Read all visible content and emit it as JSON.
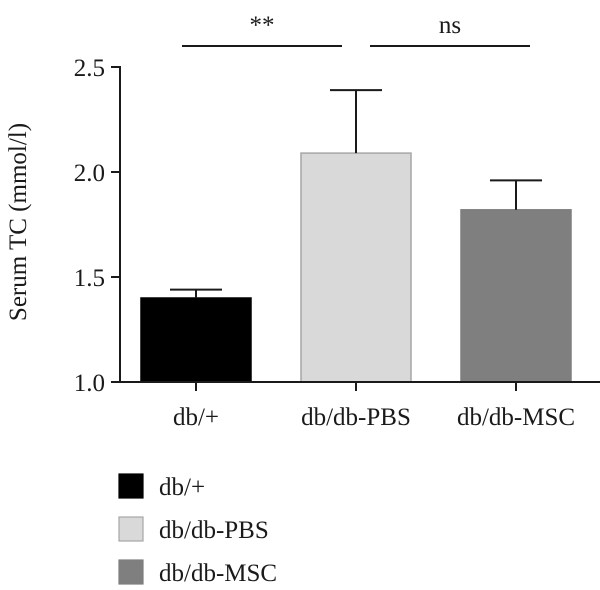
{
  "chart_data": {
    "type": "bar",
    "title": "",
    "xlabel": "",
    "ylabel": "Serum TC (mmol/l)",
    "ylim": [
      1.0,
      2.5
    ],
    "yticks": [
      "1.0",
      "1.5",
      "2.0",
      "2.5"
    ],
    "categories": [
      "db/+",
      "db/db-PBS",
      "db/db-MSC"
    ],
    "values": [
      1.4,
      2.09,
      1.82
    ],
    "error_upper": [
      1.44,
      2.39,
      1.96
    ],
    "colors": [
      "#000000",
      "#d9d9d9",
      "#7f7f7f"
    ],
    "significance": [
      {
        "from": 0,
        "to": 1,
        "label": "**"
      },
      {
        "from": 1,
        "to": 2,
        "label": "ns"
      }
    ],
    "legend": {
      "placement": "bottom-left",
      "entries": [
        "db/+",
        "db/db-PBS",
        "db/db-MSC"
      ]
    },
    "grid": false
  }
}
